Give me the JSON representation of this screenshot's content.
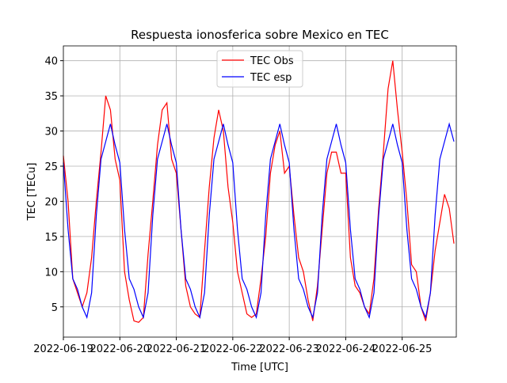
{
  "chart_data": {
    "type": "line",
    "title": "Respuesta ionosferica sobre Mexico en TEC",
    "xlabel": "Time [UTC]",
    "ylabel": "TEC [TECu]",
    "x": [
      "2022-06-19T00:00",
      "2022-06-19T02:00",
      "2022-06-19T04:00",
      "2022-06-19T06:00",
      "2022-06-19T08:00",
      "2022-06-19T10:00",
      "2022-06-19T12:00",
      "2022-06-19T14:00",
      "2022-06-19T16:00",
      "2022-06-19T18:00",
      "2022-06-19T20:00",
      "2022-06-19T22:00",
      "2022-06-20T00:00",
      "2022-06-20T02:00",
      "2022-06-20T04:00",
      "2022-06-20T06:00",
      "2022-06-20T08:00",
      "2022-06-20T10:00",
      "2022-06-20T12:00",
      "2022-06-20T14:00",
      "2022-06-20T16:00",
      "2022-06-20T18:00",
      "2022-06-20T20:00",
      "2022-06-20T22:00",
      "2022-06-21T00:00",
      "2022-06-21T02:00",
      "2022-06-21T04:00",
      "2022-06-21T06:00",
      "2022-06-21T08:00",
      "2022-06-21T10:00",
      "2022-06-21T12:00",
      "2022-06-21T14:00",
      "2022-06-21T16:00",
      "2022-06-21T18:00",
      "2022-06-21T20:00",
      "2022-06-21T22:00",
      "2022-06-22T00:00",
      "2022-06-22T02:00",
      "2022-06-22T04:00",
      "2022-06-22T06:00",
      "2022-06-22T08:00",
      "2022-06-22T10:00",
      "2022-06-22T12:00",
      "2022-06-22T14:00",
      "2022-06-22T16:00",
      "2022-06-22T18:00",
      "2022-06-22T20:00",
      "2022-06-22T22:00",
      "2022-06-23T00:00",
      "2022-06-23T02:00",
      "2022-06-23T04:00",
      "2022-06-23T06:00",
      "2022-06-23T08:00",
      "2022-06-23T10:00",
      "2022-06-23T12:00",
      "2022-06-23T14:00",
      "2022-06-23T16:00",
      "2022-06-23T18:00",
      "2022-06-23T20:00",
      "2022-06-23T22:00",
      "2022-06-24T00:00",
      "2022-06-24T02:00",
      "2022-06-24T04:00",
      "2022-06-24T06:00",
      "2022-06-24T08:00",
      "2022-06-24T10:00",
      "2022-06-24T12:00",
      "2022-06-24T14:00",
      "2022-06-24T16:00",
      "2022-06-24T18:00",
      "2022-06-24T20:00",
      "2022-06-24T22:00",
      "2022-06-25T00:00",
      "2022-06-25T02:00",
      "2022-06-25T04:00",
      "2022-06-25T06:00",
      "2022-06-25T08:00",
      "2022-06-25T10:00",
      "2022-06-25T12:00",
      "2022-06-25T14:00",
      "2022-06-25T16:00",
      "2022-06-25T18:00",
      "2022-06-25T20:00",
      "2022-06-25T22:00"
    ],
    "series": [
      {
        "name": "TEC Obs",
        "color": "#ff0000",
        "values": [
          26.5,
          20,
          9,
          7,
          5,
          7,
          12,
          20,
          27,
          35,
          33,
          26,
          23,
          10,
          6,
          3,
          2.8,
          3.5,
          12.5,
          20,
          28,
          33,
          34,
          26,
          24,
          16,
          8,
          5,
          4,
          3.5,
          13,
          22,
          29,
          33,
          30,
          22,
          17,
          10,
          7,
          4,
          3.5,
          4,
          9,
          15,
          24,
          28,
          30,
          24,
          25,
          18,
          12,
          10,
          6,
          3,
          8,
          16,
          24,
          27,
          27,
          24,
          24,
          12,
          8,
          7,
          5,
          4,
          9,
          19,
          27,
          36,
          40,
          33,
          27,
          20,
          11,
          10,
          5,
          3,
          7,
          13,
          17,
          21,
          19,
          14
        ]
      },
      {
        "name": "TEC esp",
        "color": "#0000ff",
        "values": [
          25.5,
          16,
          9,
          7.5,
          5,
          3.5,
          7,
          18,
          26,
          28.5,
          31,
          28,
          25.5,
          16,
          9,
          7.5,
          5,
          3.5,
          7,
          18,
          26,
          28.5,
          31,
          28,
          25.5,
          16,
          9,
          7.5,
          5,
          3.5,
          7,
          18,
          26,
          28.5,
          31,
          28,
          25.5,
          16,
          9,
          7.5,
          5,
          3.5,
          7,
          18,
          26,
          28.5,
          31,
          28,
          25.5,
          16,
          9,
          7.5,
          5,
          3.5,
          7,
          18,
          26,
          28.5,
          31,
          28,
          25.5,
          16,
          9,
          7.5,
          5,
          3.5,
          7,
          18,
          26,
          28.5,
          31,
          28,
          25.5,
          16,
          9,
          7.5,
          5,
          3.5,
          7,
          18,
          26,
          28.5,
          31,
          28.5
        ]
      }
    ],
    "xlim": [
      "2022-06-19T00:00",
      "2022-06-25T23:00"
    ],
    "xticks": [
      "2022-06-19",
      "2022-06-20",
      "2022-06-21",
      "2022-06-22",
      "2022-06-23",
      "2022-06-24",
      "2022-06-25"
    ],
    "ylim": [
      0.7,
      42.1
    ],
    "yticks": [
      5,
      10,
      15,
      20,
      25,
      30,
      35,
      40
    ],
    "grid": true,
    "legend": "upper center"
  }
}
